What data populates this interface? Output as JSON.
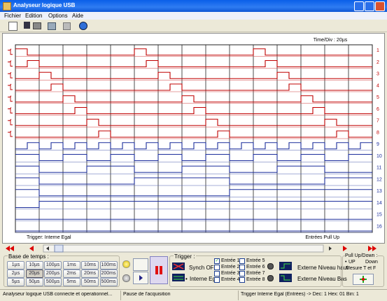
{
  "window": {
    "title": "Analyseur logique USB"
  },
  "menu": [
    "Fichier",
    "Edition",
    "Options",
    "Aide"
  ],
  "scope": {
    "time_div": "Time/Div : 20µs",
    "channels": [
      "1",
      "2",
      "3",
      "4",
      "5",
      "6",
      "7",
      "8",
      "9",
      "10",
      "11",
      "12",
      "13",
      "14",
      "15",
      "16"
    ],
    "trigger_label": "Trigger: Interne Egal",
    "pull_label": "Entrées Pull Up"
  },
  "timebase": {
    "title": "Base de temps :",
    "buttons": [
      [
        "1µs",
        "10µs",
        "100µs",
        "1ms",
        "10ms",
        "100ms"
      ],
      [
        "2µs",
        "20µs",
        "200µs",
        "2ms",
        "20ms",
        "200ms"
      ],
      [
        "5µs",
        "50µs",
        "500µs",
        "5ms",
        "50ms",
        "500ms"
      ]
    ],
    "selected": "20µs"
  },
  "trigger": {
    "title": "Trigger :",
    "sync_off": "Synch OFF",
    "internal": "Interne Egal",
    "inputs": [
      {
        "label": "Entrée 1",
        "checked": true
      },
      {
        "label": "Entrée 2",
        "checked": false
      },
      {
        "label": "Entrée 3",
        "checked": false
      },
      {
        "label": "Entrée 4",
        "checked": false
      },
      {
        "label": "Entrée 5",
        "checked": false
      },
      {
        "label": "Entrée 6",
        "checked": false
      },
      {
        "label": "Entrée 7",
        "checked": false
      },
      {
        "label": "Entrée 8",
        "checked": false
      }
    ],
    "ext_high": "Externe Niveau haut",
    "ext_low": "Externe Niveau Bas"
  },
  "pull": {
    "title": "Pull Up/Down :",
    "up": "UP",
    "down": "Down",
    "measure": "Mesure T et F"
  },
  "status": [
    "Analyseur logique USB connecte et operationnel...",
    "Pause de l'acquisition",
    "Trigger Interne Egal (Entrées) -> Dec: 1  Hex: 01  Bin: 1"
  ]
}
